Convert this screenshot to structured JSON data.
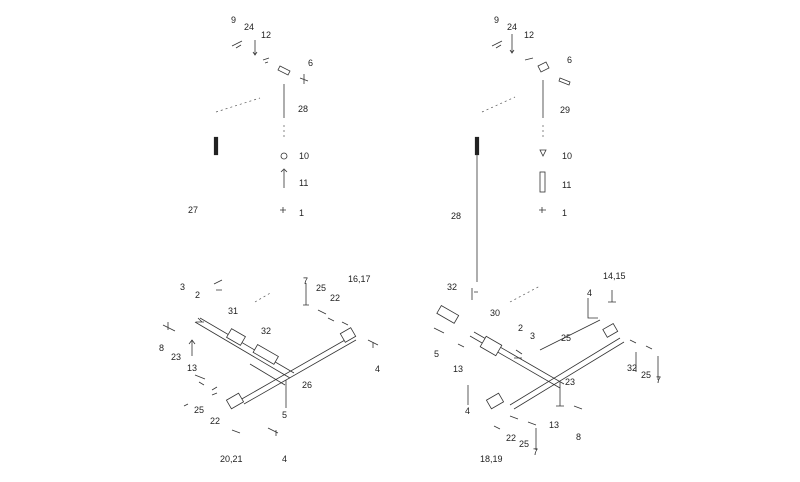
{
  "diagram": {
    "top_left_labels": [
      "9",
      "24",
      "12",
      "6",
      "28",
      "10",
      "11",
      "1",
      "27"
    ],
    "top_right_labels": [
      "9",
      "24",
      "12",
      "6",
      "29",
      "10",
      "11",
      "1",
      "28"
    ],
    "bottom_left_labels": [
      "3",
      "2",
      "31",
      "32",
      "8",
      "23",
      "13",
      "25",
      "22",
      "20,21",
      "26",
      "5",
      "4",
      "7",
      "16,17"
    ],
    "bottom_right_labels": [
      "32",
      "30",
      "14,15",
      "5",
      "2",
      "3",
      "25",
      "13",
      "4",
      "23",
      "8",
      "22",
      "18,19",
      "32",
      "25",
      "7"
    ]
  }
}
